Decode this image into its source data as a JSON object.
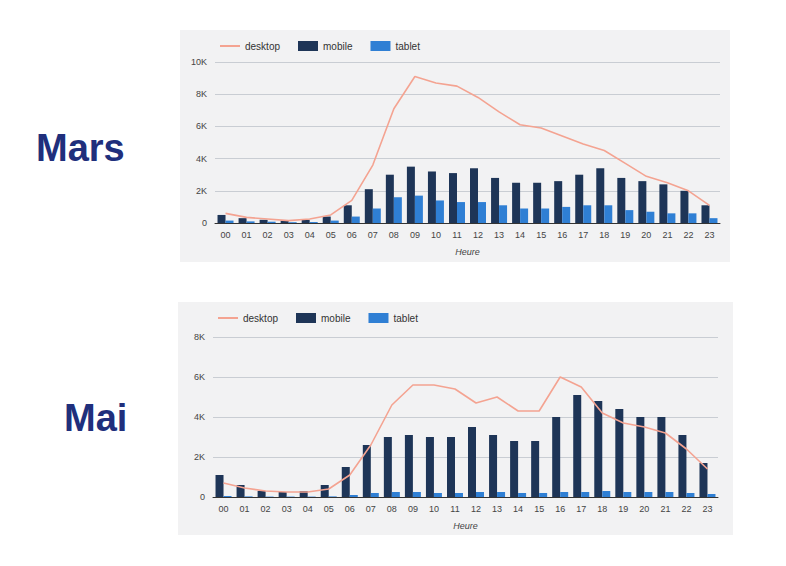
{
  "chart_data": [
    {
      "type": "bar",
      "title": "Mars",
      "xlabel": "Heure",
      "categories": [
        "00",
        "01",
        "02",
        "03",
        "04",
        "05",
        "06",
        "07",
        "08",
        "09",
        "10",
        "11",
        "12",
        "13",
        "14",
        "15",
        "16",
        "17",
        "18",
        "19",
        "20",
        "21",
        "22",
        "23"
      ],
      "series": [
        {
          "name": "desktop",
          "type": "line",
          "color": "#f4a391",
          "values": [
            600,
            350,
            250,
            150,
            250,
            500,
            1400,
            3600,
            7100,
            9100,
            8700,
            8500,
            7800,
            6900,
            6100,
            5900,
            5400,
            4900,
            4500,
            3700,
            2900,
            2500,
            2000,
            1100
          ]
        },
        {
          "name": "mobile",
          "type": "bar",
          "color": "#1e3557",
          "values": [
            500,
            300,
            200,
            150,
            200,
            400,
            1100,
            2100,
            3000,
            3500,
            3200,
            3100,
            3400,
            2800,
            2500,
            2500,
            2600,
            3000,
            3400,
            2800,
            2600,
            2400,
            2000,
            1100
          ]
        },
        {
          "name": "tablet",
          "type": "bar",
          "color": "#2f7fd4",
          "values": [
            150,
            100,
            80,
            50,
            60,
            150,
            400,
            900,
            1600,
            1700,
            1400,
            1300,
            1300,
            1100,
            900,
            900,
            1000,
            1100,
            1100,
            800,
            700,
            600,
            600,
            300
          ]
        }
      ],
      "ylim": [
        0,
        10000
      ],
      "yticks": [
        0,
        {
          "value": 2000,
          "label": "2K"
        },
        {
          "value": 4000,
          "label": "4K"
        },
        {
          "value": 6000,
          "label": "6K"
        },
        {
          "value": 8000,
          "label": "8K"
        },
        {
          "value": 10000,
          "label": "10K"
        }
      ],
      "grid": true,
      "legend": "top-left"
    },
    {
      "type": "bar",
      "title": "Mai",
      "xlabel": "Heure",
      "categories": [
        "00",
        "01",
        "02",
        "03",
        "04",
        "05",
        "06",
        "07",
        "08",
        "09",
        "10",
        "11",
        "12",
        "13",
        "14",
        "15",
        "16",
        "17",
        "18",
        "19",
        "20",
        "21",
        "22",
        "23"
      ],
      "series": [
        {
          "name": "desktop",
          "type": "line",
          "color": "#f4a391",
          "values": [
            700,
            450,
            300,
            250,
            250,
            400,
            1100,
            2600,
            4600,
            5600,
            5600,
            5400,
            4700,
            5000,
            4300,
            4300,
            6000,
            5500,
            4200,
            3700,
            3500,
            3200,
            2400,
            1400
          ]
        },
        {
          "name": "mobile",
          "type": "bar",
          "color": "#1e3557",
          "values": [
            1100,
            600,
            300,
            250,
            300,
            600,
            1500,
            2600,
            3000,
            3100,
            3000,
            3000,
            3500,
            3100,
            2800,
            2800,
            4000,
            5100,
            4800,
            4400,
            4000,
            4000,
            3100,
            1700
          ]
        },
        {
          "name": "tablet",
          "type": "bar",
          "color": "#2f7fd4",
          "values": [
            50,
            30,
            20,
            20,
            20,
            30,
            100,
            200,
            250,
            250,
            200,
            200,
            250,
            250,
            200,
            200,
            250,
            250,
            300,
            250,
            250,
            250,
            200,
            150
          ]
        }
      ],
      "ylim": [
        0,
        8000
      ],
      "yticks": [
        0,
        {
          "value": 2000,
          "label": "2K"
        },
        {
          "value": 4000,
          "label": "4K"
        },
        {
          "value": 6000,
          "label": "6K"
        },
        {
          "value": 8000,
          "label": "8K"
        }
      ],
      "grid": true,
      "legend": "top-left"
    }
  ]
}
